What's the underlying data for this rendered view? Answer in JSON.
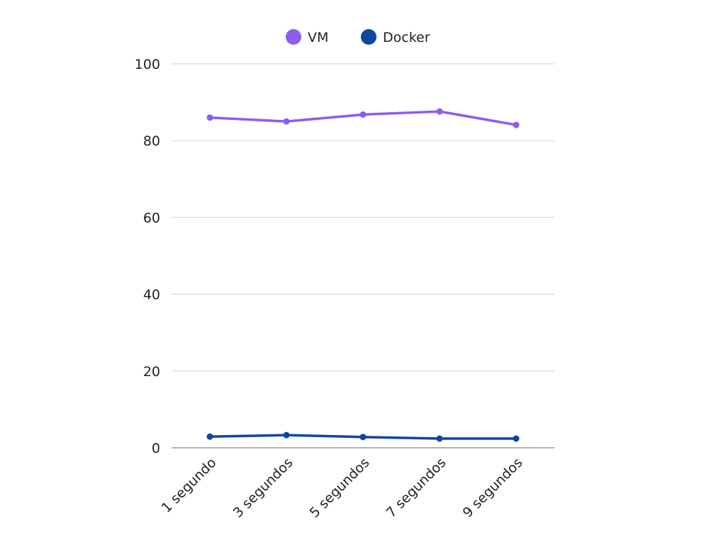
{
  "chart_data": {
    "type": "line",
    "categories": [
      "1 segundo",
      "3 segundos",
      "5 segundos",
      "7 segundos",
      "9 segundos"
    ],
    "series": [
      {
        "name": "VM",
        "color": "#8e5cef",
        "values": [
          86,
          85,
          86.8,
          87.6,
          84.1
        ]
      },
      {
        "name": "Docker",
        "color": "#0d47a1",
        "values": [
          2.9,
          3.3,
          2.8,
          2.4,
          2.4
        ]
      }
    ],
    "ylim": [
      0,
      100
    ],
    "yticks": [
      0,
      20,
      40,
      60,
      80,
      100
    ],
    "grid": true,
    "legend": "top-center",
    "title": "",
    "xlabel": "",
    "ylabel": ""
  }
}
